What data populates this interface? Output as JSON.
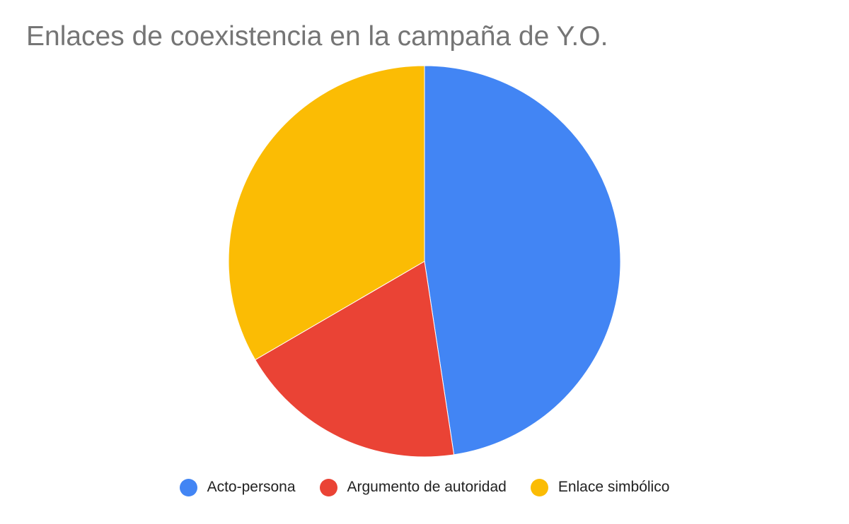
{
  "chart_data": {
    "type": "pie",
    "title": "Enlaces de coexistencia en la campaña de Y.O.",
    "start_angle": "12 o'clock",
    "direction": "clockwise",
    "legend_position": "bottom",
    "slices": [
      {
        "label": "Acto-persona",
        "value": 47.6,
        "color": "#4285F4"
      },
      {
        "label": "Argumento de autoridad",
        "value": 19.0,
        "color": "#EA4335"
      },
      {
        "label": "Enlace simbólico",
        "value": 33.4,
        "color": "#FBBC04"
      }
    ]
  }
}
